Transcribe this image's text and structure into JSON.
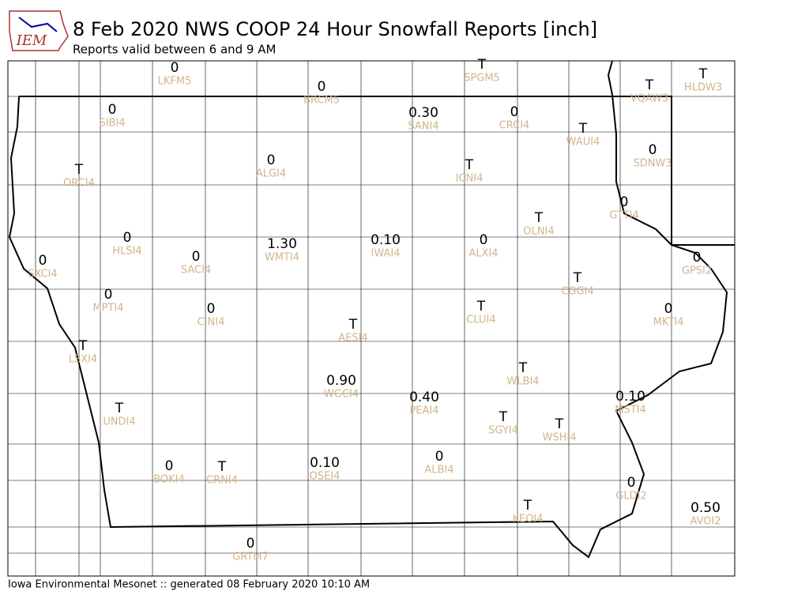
{
  "logo": "IEM",
  "title": "8 Feb 2020 NWS COOP 24 Hour Snowfall Reports [inch]",
  "subtitle": "Reports valid between 6 and 9 AM",
  "footer": "Iowa Environmental Mesonet :: generated 08 February 2020 10:10 AM",
  "stations": [
    {
      "value": "0",
      "id": "LKFM5"
    },
    {
      "value": "0",
      "id": "BRCM5"
    },
    {
      "value": "T",
      "id": "SPGM5"
    },
    {
      "value": "T",
      "id": "VQAW3"
    },
    {
      "value": "T",
      "id": "HLDW3"
    },
    {
      "value": "0",
      "id": "SIBI4"
    },
    {
      "value": "0.30",
      "id": "SANI4"
    },
    {
      "value": "0",
      "id": "CRCI4"
    },
    {
      "value": "T",
      "id": "WAUI4"
    },
    {
      "value": "0",
      "id": "SDNW3"
    },
    {
      "value": "T",
      "id": "ORCI4"
    },
    {
      "value": "0",
      "id": "ALGI4"
    },
    {
      "value": "T",
      "id": "ICNI4"
    },
    {
      "value": "0",
      "id": "GTTI4"
    },
    {
      "value": "T",
      "id": "OLNI4"
    },
    {
      "value": "0",
      "id": "HLSI4"
    },
    {
      "value": "0",
      "id": "SXCI4"
    },
    {
      "value": "0",
      "id": "SACI4"
    },
    {
      "value": "1.30",
      "id": "WMTI4"
    },
    {
      "value": "0.10",
      "id": "IWAI4"
    },
    {
      "value": "0",
      "id": "ALXI4"
    },
    {
      "value": "0",
      "id": "GPSI2"
    },
    {
      "value": "T",
      "id": "CGGI4"
    },
    {
      "value": "0",
      "id": "MPTI4"
    },
    {
      "value": "0",
      "id": "CINI4"
    },
    {
      "value": "T",
      "id": "CLUI4"
    },
    {
      "value": "0",
      "id": "MKTI4"
    },
    {
      "value": "T",
      "id": "AESI4"
    },
    {
      "value": "T",
      "id": "LSXI4"
    },
    {
      "value": "T",
      "id": "WLBI4"
    },
    {
      "value": "0.90",
      "id": "WGCI4"
    },
    {
      "value": "0.40",
      "id": "PEAI4"
    },
    {
      "value": "0.10",
      "id": "MSTI4"
    },
    {
      "value": "T",
      "id": "UNDI4"
    },
    {
      "value": "T",
      "id": "SGYI4"
    },
    {
      "value": "T",
      "id": "WSHI4"
    },
    {
      "value": "0",
      "id": "ALBI4"
    },
    {
      "value": "0",
      "id": "BOKI4"
    },
    {
      "value": "T",
      "id": "CRNI4"
    },
    {
      "value": "0.10",
      "id": "OSEI4"
    },
    {
      "value": "0",
      "id": "GLDI2"
    },
    {
      "value": "T",
      "id": "KEOI4"
    },
    {
      "value": "0.50",
      "id": "AVOI2"
    },
    {
      "value": "0",
      "id": "GRTM7"
    }
  ]
}
